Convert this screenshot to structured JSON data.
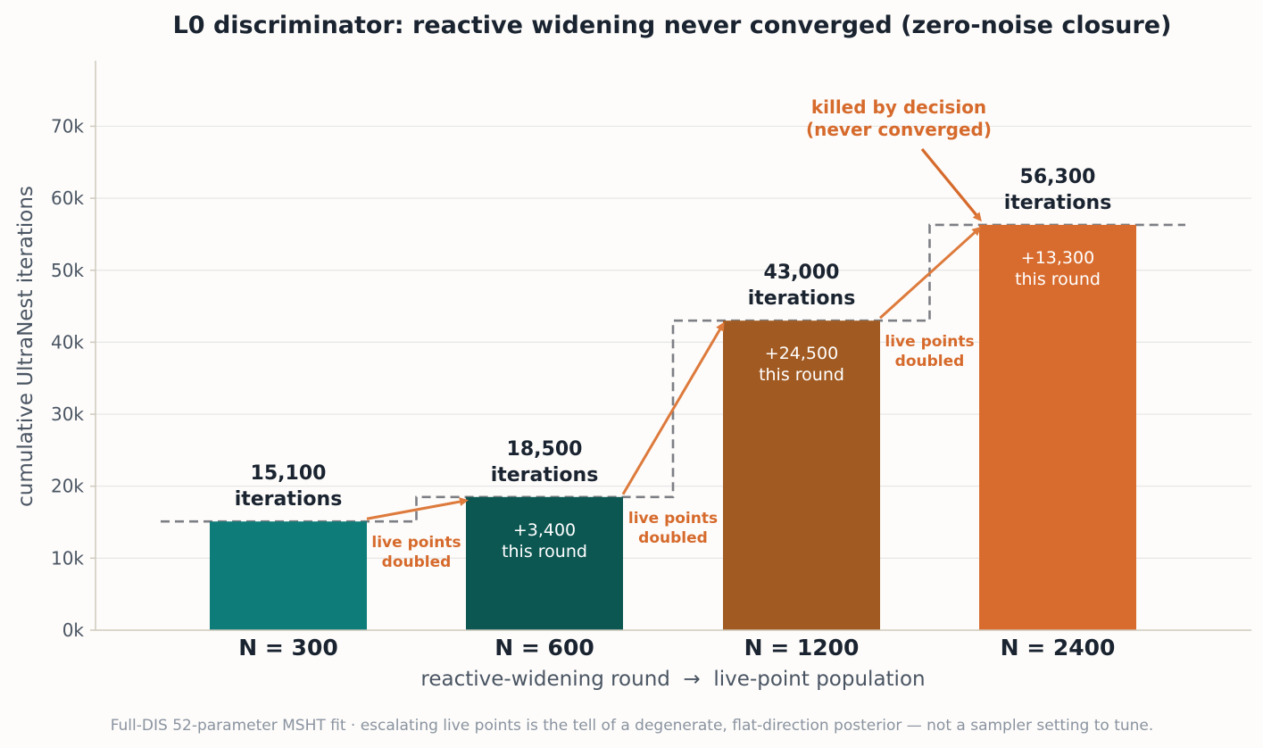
{
  "chart_data": {
    "type": "bar",
    "title": "L0 discriminator: reactive widening never converged (zero-noise closure)",
    "xlabel": "reactive-widening round  →  live-point population",
    "ylabel": "cumulative UltraNest iterations",
    "ylim": [
      0,
      79000
    ],
    "yticks": [
      0,
      10000,
      20000,
      30000,
      40000,
      50000,
      60000,
      70000
    ],
    "ytick_labels": [
      "0k",
      "10k",
      "20k",
      "30k",
      "40k",
      "50k",
      "60k",
      "70k"
    ],
    "grid": "horizontal",
    "categories": [
      "N = 300",
      "N = 600",
      "N = 1200",
      "N = 2400"
    ],
    "values": [
      15100,
      18500,
      43000,
      56300
    ],
    "colors": [
      "#0e7c78",
      "#0d5753",
      "#a15a21",
      "#d86c2e"
    ],
    "total_labels": [
      [
        "15,100",
        "iterations"
      ],
      [
        "18,500",
        "iterations"
      ],
      [
        "43,000",
        "iterations"
      ],
      [
        "56,300",
        "iterations"
      ]
    ],
    "increment_labels": [
      null,
      [
        "+3,400",
        "this round"
      ],
      [
        "+24,500",
        "this round"
      ],
      [
        "+13,300",
        "this round"
      ]
    ],
    "transition_label": [
      "live points",
      "doubled"
    ],
    "kill_annotation": [
      "killed by decision",
      "(never converged)"
    ],
    "footnote": "Full-DIS 52-parameter MSHT fit · escalating live points is the tell of a degenerate, flat-direction posterior — not a sampler setting to tune."
  }
}
